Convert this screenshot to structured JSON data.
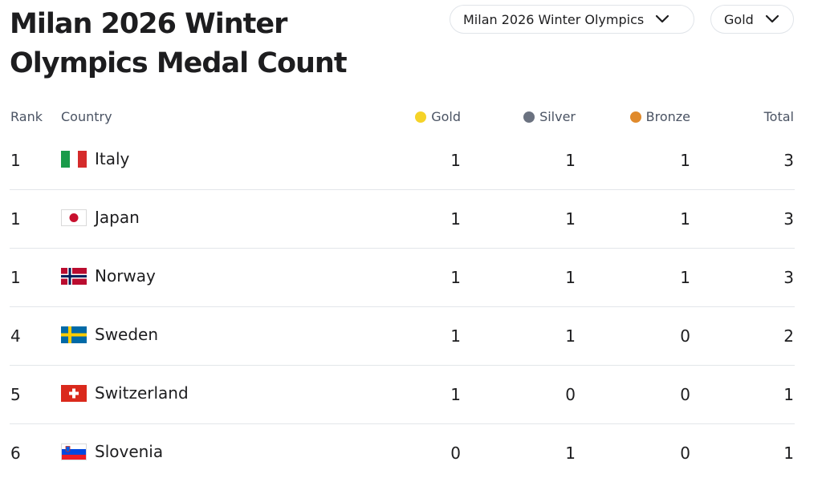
{
  "page": {
    "title_line1": "Milan 2026 Winter",
    "title_line2": "Olympics Medal Count"
  },
  "filters": {
    "event": {
      "label": "Milan 2026 Winter Olympics",
      "icon": "chevron-down-icon"
    },
    "sort": {
      "label": "Gold",
      "icon": "chevron-down-icon"
    }
  },
  "table": {
    "headers": {
      "rank": "Rank",
      "country": "Country",
      "gold": "Gold",
      "silver": "Silver",
      "bronze": "Bronze",
      "total": "Total"
    },
    "medal_colors": {
      "gold": "#f5d328",
      "silver": "#6b7280",
      "bronze": "#e08a2c"
    },
    "rows": [
      {
        "rank": "1",
        "country": "Italy",
        "flag": "italy-flag-icon",
        "gold": "1",
        "silver": "1",
        "bronze": "1",
        "total": "3"
      },
      {
        "rank": "1",
        "country": "Japan",
        "flag": "japan-flag-icon",
        "gold": "1",
        "silver": "1",
        "bronze": "1",
        "total": "3"
      },
      {
        "rank": "1",
        "country": "Norway",
        "flag": "norway-flag-icon",
        "gold": "1",
        "silver": "1",
        "bronze": "1",
        "total": "3"
      },
      {
        "rank": "4",
        "country": "Sweden",
        "flag": "sweden-flag-icon",
        "gold": "1",
        "silver": "1",
        "bronze": "0",
        "total": "2"
      },
      {
        "rank": "5",
        "country": "Switzerland",
        "flag": "switzerland-flag-icon",
        "gold": "1",
        "silver": "0",
        "bronze": "0",
        "total": "1"
      },
      {
        "rank": "6",
        "country": "Slovenia",
        "flag": "slovenia-flag-icon",
        "gold": "0",
        "silver": "1",
        "bronze": "0",
        "total": "1"
      }
    ]
  }
}
